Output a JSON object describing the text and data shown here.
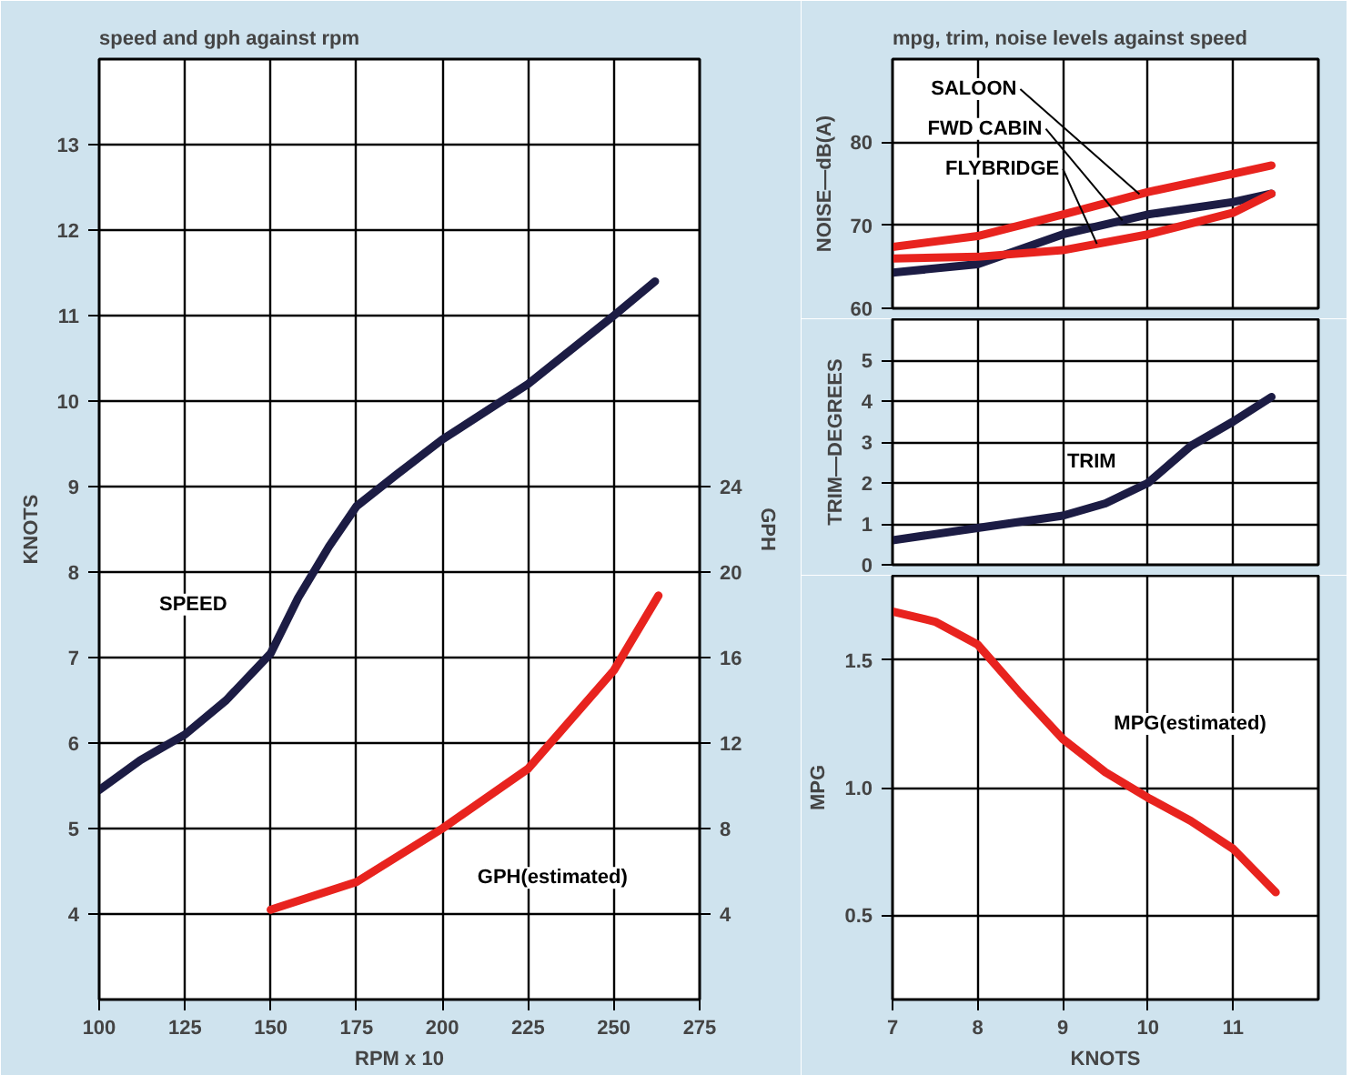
{
  "chart_data": [
    {
      "type": "line",
      "title": "speed and gph against rpm",
      "xlabel": "RPM x 10",
      "ylabel": "KNOTS",
      "y2label": "GPH",
      "xlim": [
        100,
        275
      ],
      "xticks": [
        100,
        125,
        150,
        175,
        200,
        225,
        250,
        275
      ],
      "ylim": [
        3,
        14
      ],
      "yticks": [
        4,
        5,
        6,
        7,
        8,
        9,
        10,
        11,
        12,
        13
      ],
      "y2lim": [
        0,
        44
      ],
      "y2ticks": [
        4,
        8,
        12,
        16,
        20,
        24
      ],
      "grid": true,
      "series": [
        {
          "name": "SPEED",
          "color": "#1c1c44",
          "x": [
            100,
            112,
            125,
            137,
            150,
            158,
            167,
            175,
            187,
            200,
            225,
            250,
            262
          ],
          "values": [
            5.45,
            5.8,
            6.1,
            6.5,
            7.05,
            7.7,
            8.3,
            8.77,
            9.15,
            9.55,
            10.2,
            11.0,
            11.4
          ]
        },
        {
          "name": "GPH(estimated)",
          "color": "#e8231e",
          "axis": "y2",
          "x": [
            150,
            175,
            200,
            225,
            250,
            263
          ],
          "values": [
            4.2,
            5.5,
            8.0,
            10.8,
            15.4,
            18.9
          ]
        }
      ]
    },
    {
      "type": "line",
      "title": "mpg, trim, noise levels against speed",
      "ylabel": "NOISE—dB(A)",
      "xlim": [
        7,
        12
      ],
      "xticks": [
        7,
        8,
        9,
        10,
        11
      ],
      "ylim": [
        60,
        90
      ],
      "yticks": [
        60,
        70,
        80
      ],
      "grid": true,
      "tick_labels": "y",
      "series": [
        {
          "name": "SALOON",
          "color": "#e8231e",
          "x": [
            7,
            8,
            9,
            10,
            11,
            11.45
          ],
          "values": [
            67.4,
            68.7,
            71.3,
            74.0,
            76.2,
            77.2
          ]
        },
        {
          "name": "FWD CABIN",
          "color": "#1c1c44",
          "x": [
            7,
            8,
            9,
            10,
            11,
            11.45
          ],
          "values": [
            64.3,
            65.3,
            68.9,
            71.3,
            72.8,
            73.8
          ]
        },
        {
          "name": "FLYBRIDGE",
          "color": "#e8231e",
          "x": [
            7,
            8,
            9,
            10,
            11,
            11.45
          ],
          "values": [
            66.0,
            66.2,
            67.0,
            68.9,
            71.5,
            73.8
          ]
        }
      ]
    },
    {
      "type": "line",
      "ylabel": "TRIM—DEGREES",
      "xlim": [
        7,
        12
      ],
      "xticks": [
        7,
        8,
        9,
        10,
        11
      ],
      "ylim": [
        0,
        6
      ],
      "yticks": [
        0,
        1,
        2,
        3,
        4,
        5
      ],
      "grid": true,
      "tick_labels": "y",
      "series": [
        {
          "name": "TRIM",
          "color": "#1c1c44",
          "x": [
            7,
            8,
            9,
            9.5,
            10,
            10.5,
            11,
            11.45
          ],
          "values": [
            0.6,
            0.9,
            1.2,
            1.5,
            2.0,
            2.9,
            3.5,
            4.1
          ]
        }
      ]
    },
    {
      "type": "line",
      "xlabel": "KNOTS",
      "ylabel": "MPG",
      "xlim": [
        7,
        12
      ],
      "xticks": [
        7,
        8,
        9,
        10,
        11
      ],
      "ylim": [
        0.17,
        1.83
      ],
      "yticks": [
        {
          "value": 0.5,
          "label": "0.5"
        },
        {
          "value": 1.0,
          "label": "1.0"
        },
        {
          "value": 1.5,
          "label": "1.5"
        }
      ],
      "grid": true,
      "series": [
        {
          "name": "MPG(estimated)",
          "color": "#e8231e",
          "x": [
            7,
            7.5,
            8,
            8.5,
            9,
            9.5,
            10,
            10.5,
            11,
            11.5
          ],
          "values": [
            1.69,
            1.65,
            1.56,
            1.37,
            1.19,
            1.06,
            0.96,
            0.87,
            0.76,
            0.59
          ]
        }
      ]
    }
  ]
}
